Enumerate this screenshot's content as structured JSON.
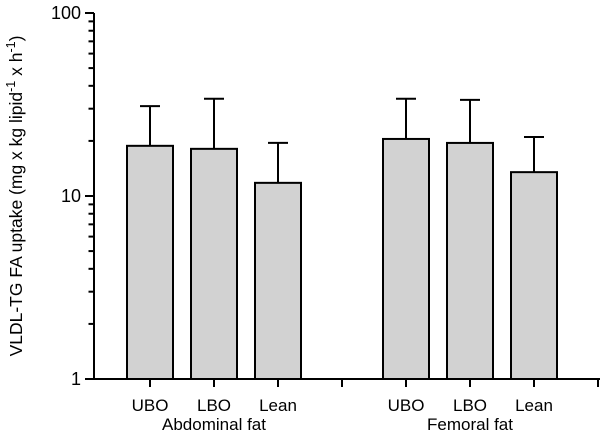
{
  "figure": {
    "background": "#ffffff"
  },
  "chart_data": {
    "type": "bar",
    "yscale": "log",
    "ylim": [
      1,
      100
    ],
    "yticks": [
      "1",
      "10",
      "100"
    ],
    "ylabel_parts": [
      {
        "text": "VLDL-TG FA uptake (mg x kg lipid",
        "sup": false
      },
      {
        "text": "-1",
        "sup": true
      },
      {
        "text": " x h",
        "sup": false
      },
      {
        "text": "-1",
        "sup": true
      },
      {
        "text": ")",
        "sup": false
      }
    ],
    "grid": false,
    "legend": "none",
    "bar_fill": "#d2d2d2",
    "bar_stroke": "#000000",
    "groups": [
      {
        "label": "Abdominal fat",
        "categories": [
          "UBO",
          "LBO",
          "Lean"
        ],
        "values": [
          18.8,
          18.1,
          11.8
        ],
        "error_top_values": [
          31,
          34,
          19.5
        ]
      },
      {
        "label": "Femoral fat",
        "categories": [
          "UBO",
          "LBO",
          "Lean"
        ],
        "values": [
          20.5,
          19.5,
          13.5
        ],
        "error_top_values": [
          34,
          33.5,
          21
        ]
      }
    ]
  }
}
